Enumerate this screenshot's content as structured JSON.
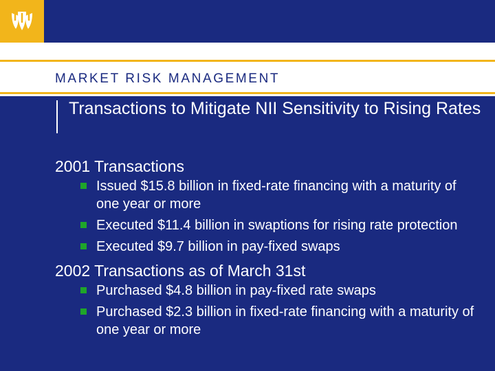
{
  "header": {
    "section_label": "MARKET RISK MANAGEMENT",
    "logo_icon": "wachovia-logo-icon",
    "colors": {
      "navy": "#1a2a80",
      "gold": "#f2b51b",
      "bullet_green": "#1fa52a",
      "white": "#ffffff"
    }
  },
  "slide": {
    "title": "Transactions to Mitigate NII Sensitivity to Rising Rates"
  },
  "sections": [
    {
      "heading": "2001 Transactions",
      "bullets": [
        "Issued $15.8 billion in fixed-rate financing with a maturity of one year or more",
        "Executed $11.4 billion in swaptions for rising rate protection",
        "Executed $9.7 billion in pay-fixed swaps"
      ]
    },
    {
      "heading": "2002 Transactions as of March 31st",
      "bullets": [
        "Purchased $4.8 billion in pay-fixed rate swaps",
        "Purchased $2.3 billion in fixed-rate financing with a maturity of one year or more"
      ]
    }
  ]
}
